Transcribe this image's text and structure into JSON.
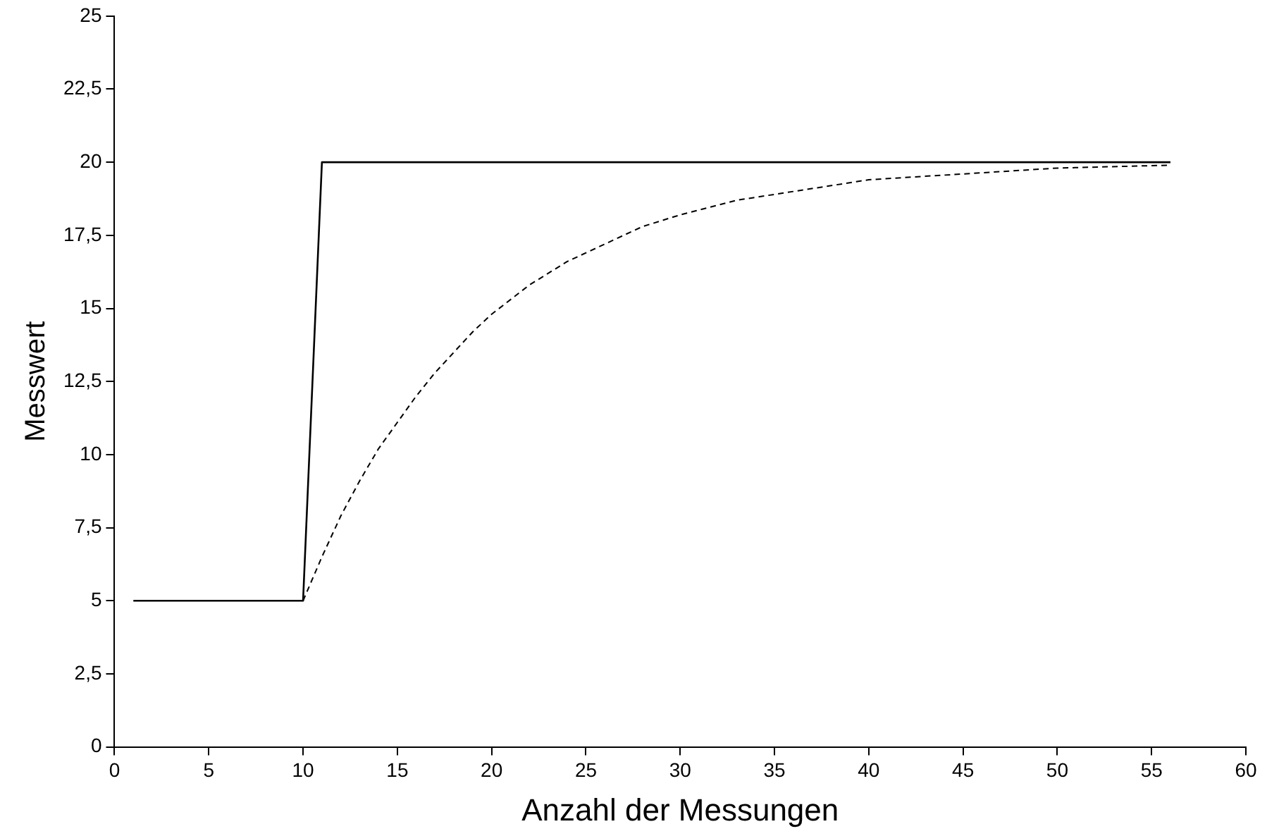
{
  "chart_data": {
    "type": "line",
    "xlabel": "Anzahl der Messungen",
    "ylabel": "Messwert",
    "xlim": [
      0,
      60
    ],
    "xticks": [
      0,
      5,
      10,
      15,
      20,
      25,
      30,
      35,
      40,
      45,
      50,
      55,
      60
    ],
    "ylim": [
      0,
      25
    ],
    "yticks": [
      0,
      {
        "value": 2.5,
        "label": "2,5"
      },
      5,
      {
        "value": 7.5,
        "label": "7,5"
      },
      10,
      {
        "value": 12.5,
        "label": "12,5"
      },
      15,
      {
        "value": 17.5,
        "label": "17,5"
      },
      20,
      {
        "value": 22.5,
        "label": "22,5"
      },
      25
    ],
    "grid": false,
    "legend": false,
    "marker": "none",
    "series": [
      {
        "color": "#000000",
        "line_style": "solid",
        "x": [
          1,
          2,
          3,
          4,
          5,
          6,
          7,
          8,
          9,
          10,
          11,
          56
        ],
        "values": [
          5,
          5,
          5,
          5,
          5,
          5,
          5,
          5,
          5,
          5,
          20,
          20
        ]
      },
      {
        "color": "#000000",
        "line_style": "dashed",
        "x": [
          10,
          11,
          12,
          13,
          14,
          15,
          16,
          17,
          18,
          19,
          20,
          22,
          24,
          26,
          28,
          30,
          33,
          36,
          40,
          45,
          50,
          56
        ],
        "values": [
          5,
          6.5,
          7.9,
          9.1,
          10.2,
          11.1,
          12,
          12.8,
          13.5,
          14.2,
          14.8,
          15.8,
          16.6,
          17.2,
          17.8,
          18.2,
          18.7,
          19,
          19.4,
          19.6,
          19.8,
          19.9
        ]
      }
    ]
  }
}
